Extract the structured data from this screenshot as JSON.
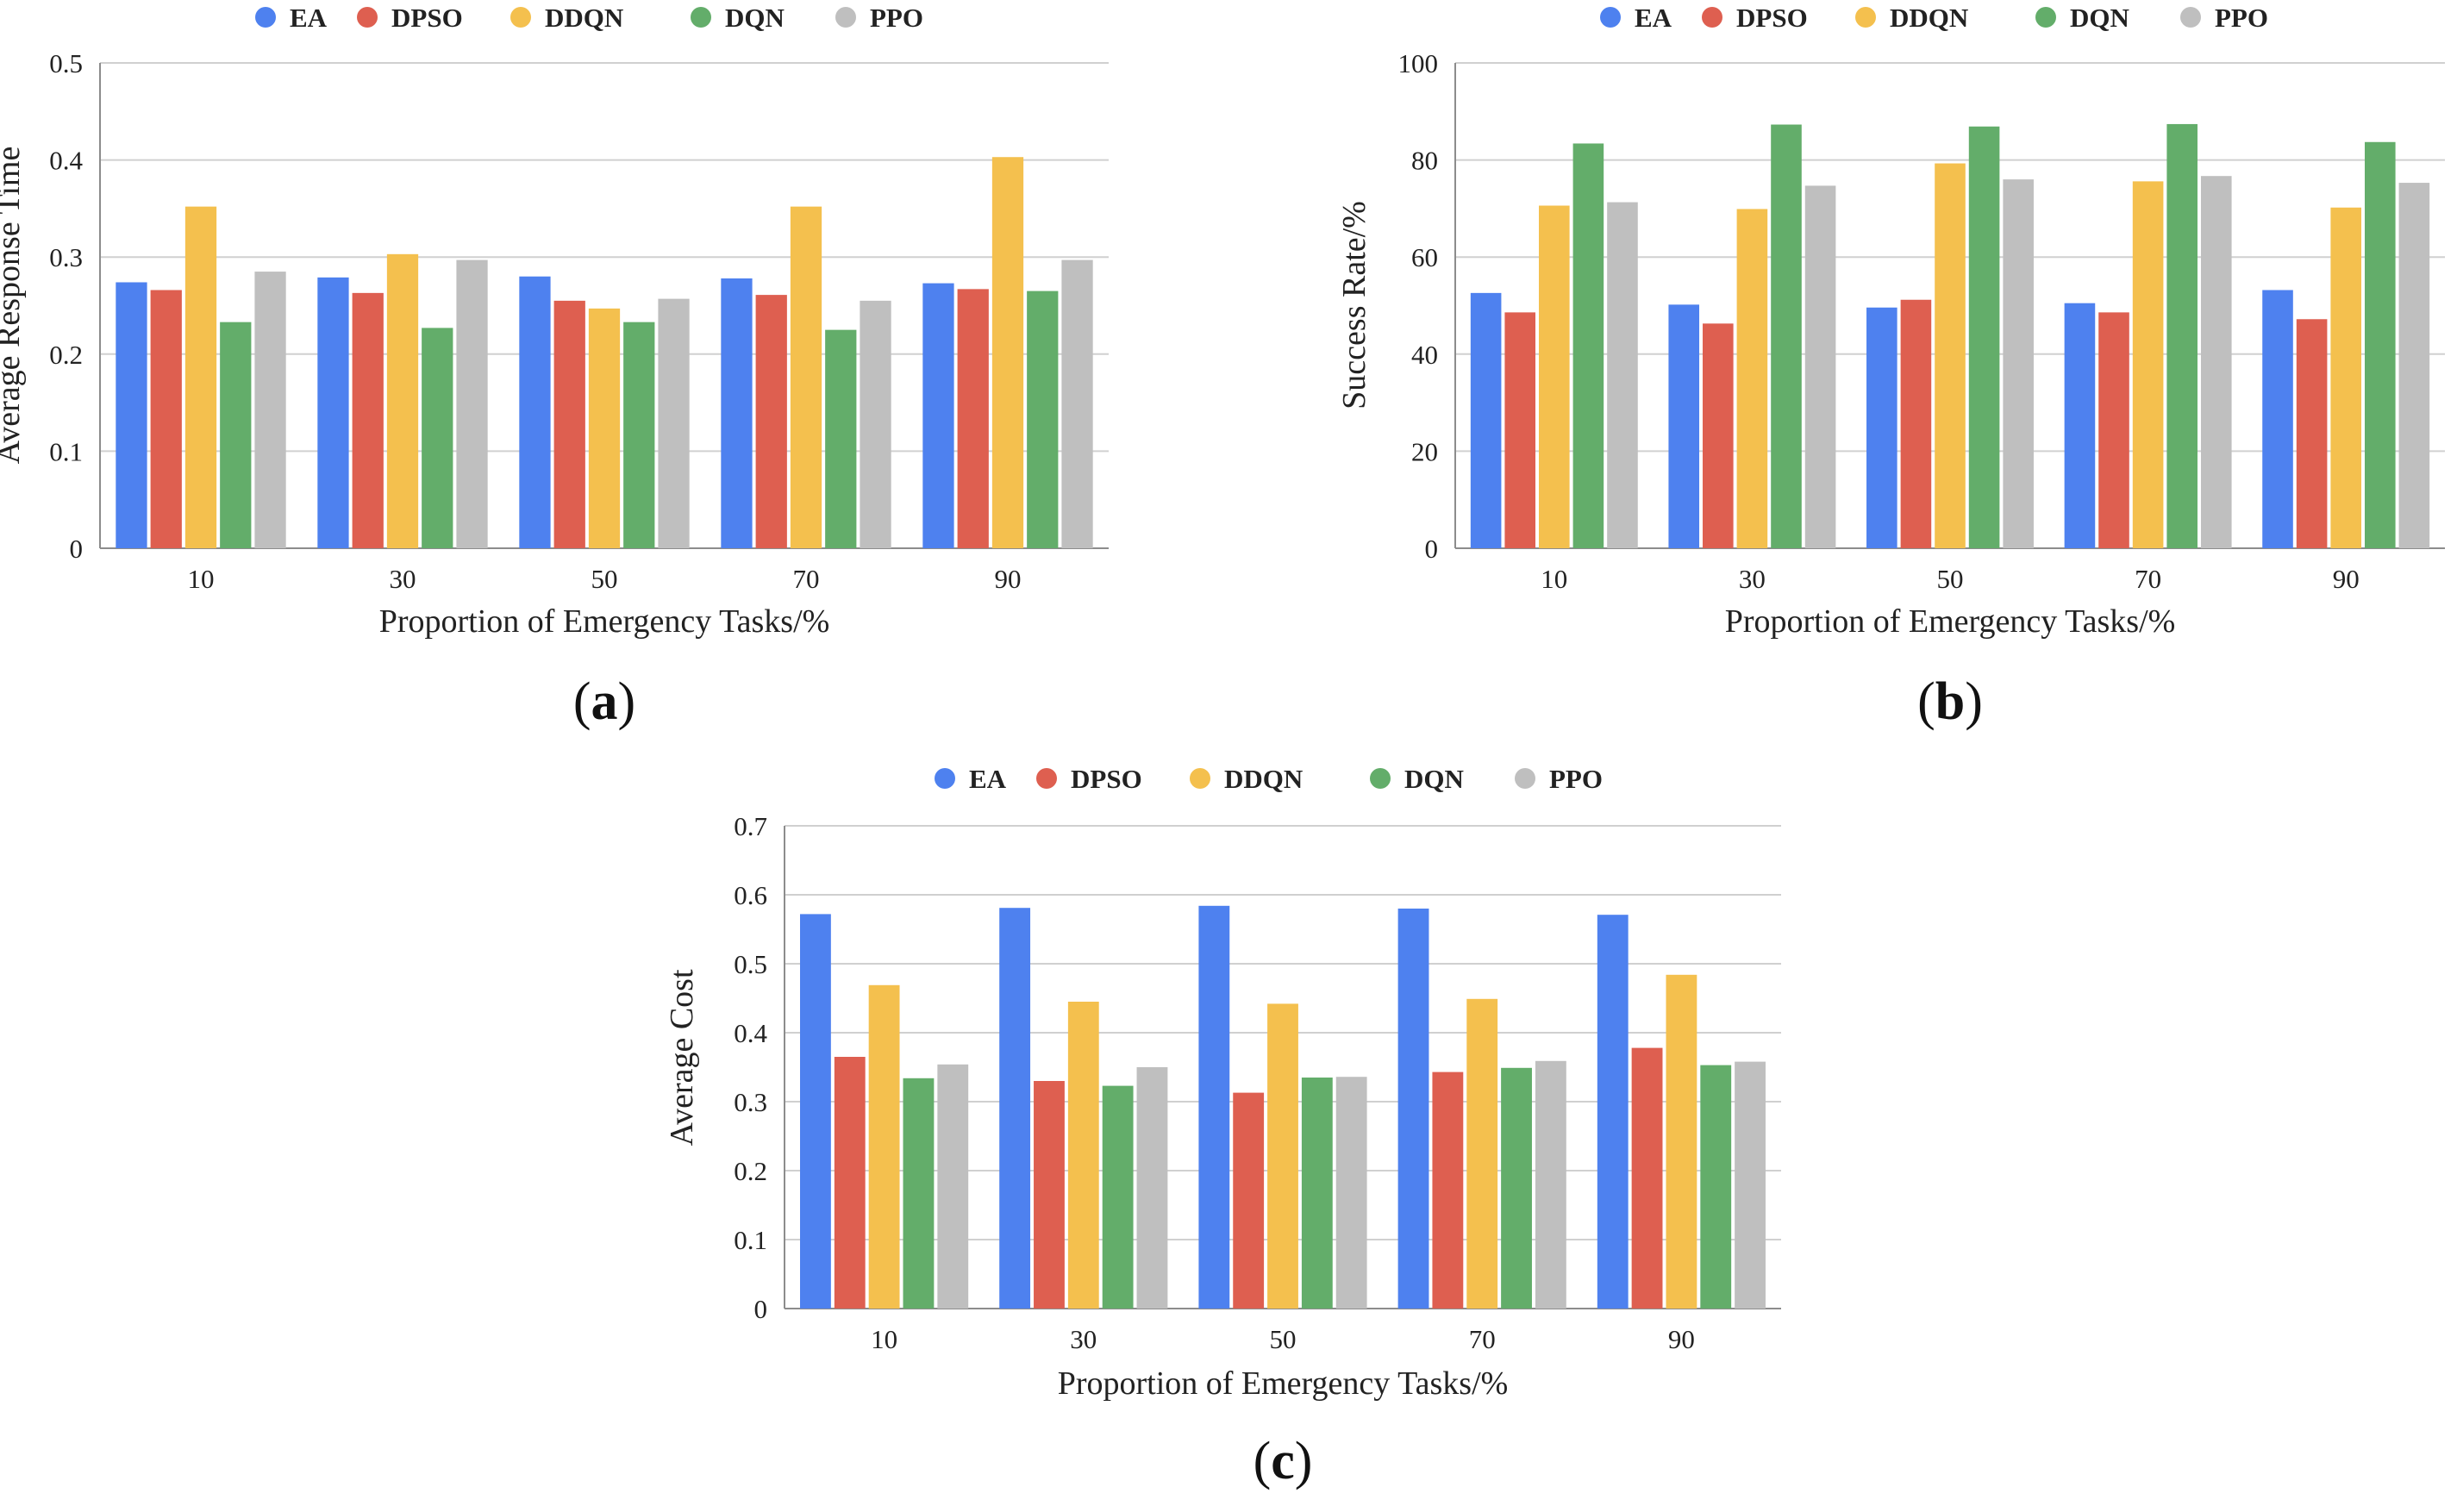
{
  "colors": {
    "EA": "#4e81ef",
    "DPSO": "#de5f50",
    "DDQN": "#f4c04e",
    "DQN": "#63ad6a",
    "PPO": "#bfbfbf"
  },
  "chart_data": [
    {
      "type": "bar",
      "panel_label": "a",
      "categories": [
        "10",
        "30",
        "50",
        "70",
        "90"
      ],
      "xlabel": "Proportion of Emergency Tasks/%",
      "ylabel": "Average Response Time",
      "ylim": [
        0,
        0.5
      ],
      "yticks": [
        0,
        0.1,
        0.2,
        0.3,
        0.4,
        0.5
      ],
      "yticks_text": [
        "0",
        "0.1",
        "0.2",
        "0.3",
        "0.4",
        "0.5"
      ],
      "grid": true,
      "legend_position": "top",
      "series": [
        {
          "name": "EA",
          "values": [
            0.274,
            0.279,
            0.28,
            0.278,
            0.273
          ]
        },
        {
          "name": "DPSO",
          "values": [
            0.266,
            0.263,
            0.255,
            0.261,
            0.267
          ]
        },
        {
          "name": "DDQN",
          "values": [
            0.352,
            0.303,
            0.247,
            0.352,
            0.403
          ]
        },
        {
          "name": "DQN",
          "values": [
            0.233,
            0.227,
            0.233,
            0.225,
            0.265
          ]
        },
        {
          "name": "PPO",
          "values": [
            0.285,
            0.297,
            0.257,
            0.255,
            0.297
          ]
        }
      ]
    },
    {
      "type": "bar",
      "panel_label": "b",
      "categories": [
        "10",
        "30",
        "50",
        "70",
        "90"
      ],
      "xlabel": "Proportion of Emergency Tasks/%",
      "ylabel": "Success Rate/%",
      "ylim": [
        0,
        100
      ],
      "yticks": [
        0,
        20,
        40,
        60,
        80,
        100
      ],
      "yticks_text": [
        "0",
        "20",
        "40",
        "60",
        "80",
        "100"
      ],
      "grid": true,
      "legend_position": "top",
      "series": [
        {
          "name": "EA",
          "values": [
            52.6,
            50.2,
            49.6,
            50.5,
            53.2
          ]
        },
        {
          "name": "DPSO",
          "values": [
            48.6,
            46.3,
            51.2,
            48.6,
            47.2
          ]
        },
        {
          "name": "DDQN",
          "values": [
            70.6,
            69.9,
            79.3,
            75.6,
            70.2
          ]
        },
        {
          "name": "DQN",
          "values": [
            83.4,
            87.3,
            86.9,
            87.4,
            83.7
          ]
        },
        {
          "name": "PPO",
          "values": [
            71.3,
            74.7,
            76.0,
            76.7,
            75.3
          ]
        }
      ]
    },
    {
      "type": "bar",
      "panel_label": "c",
      "categories": [
        "10",
        "30",
        "50",
        "70",
        "90"
      ],
      "xlabel": "Proportion of Emergency Tasks/%",
      "ylabel": "Average  Cost",
      "ylim": [
        0,
        0.7
      ],
      "yticks": [
        0,
        0.1,
        0.2,
        0.3,
        0.4,
        0.5,
        0.6,
        0.7
      ],
      "yticks_text": [
        "0",
        "0.1",
        "0.2",
        "0.3",
        "0.4",
        "0.5",
        "0.6",
        "0.7"
      ],
      "grid": true,
      "legend_position": "top",
      "series": [
        {
          "name": "EA",
          "values": [
            0.572,
            0.581,
            0.584,
            0.58,
            0.571
          ]
        },
        {
          "name": "DPSO",
          "values": [
            0.365,
            0.33,
            0.313,
            0.343,
            0.378
          ]
        },
        {
          "name": "DDQN",
          "values": [
            0.469,
            0.445,
            0.442,
            0.449,
            0.484
          ]
        },
        {
          "name": "DQN",
          "values": [
            0.334,
            0.323,
            0.335,
            0.349,
            0.353
          ]
        },
        {
          "name": "PPO",
          "values": [
            0.354,
            0.35,
            0.336,
            0.359,
            0.358
          ]
        }
      ]
    }
  ]
}
